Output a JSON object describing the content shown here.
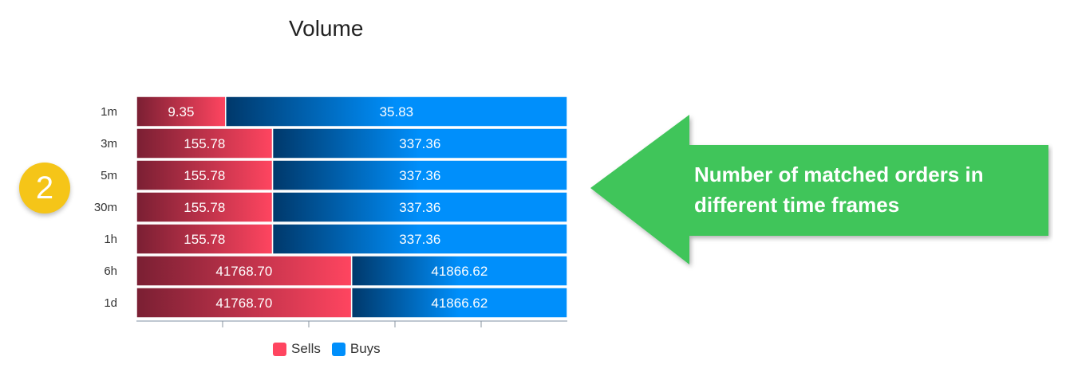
{
  "title": "Volume",
  "badge": "2",
  "callout": {
    "text": "Number of matched orders in different time frames",
    "color": "#3fc55a"
  },
  "legend": [
    {
      "label": "Sells",
      "color": "#ff4560"
    },
    {
      "label": "Buys",
      "color": "#008ffb"
    }
  ],
  "chart_data": {
    "type": "bar",
    "orientation": "horizontal",
    "stacked": "percent",
    "title": "Volume",
    "categories": [
      "1m",
      "3m",
      "5m",
      "30m",
      "1h",
      "6h",
      "1d"
    ],
    "series": [
      {
        "name": "Sells",
        "color": "#ff4560",
        "values": [
          9.35,
          155.78,
          155.78,
          155.78,
          155.78,
          41768.7,
          41768.7
        ],
        "labels": [
          "9.35",
          "155.78",
          "155.78",
          "155.78",
          "155.78",
          "41768.70",
          "41768.70"
        ]
      },
      {
        "name": "Buys",
        "color": "#008ffb",
        "values": [
          35.83,
          337.36,
          337.36,
          337.36,
          337.36,
          41866.62,
          41866.62
        ],
        "labels": [
          "35.83",
          "337.36",
          "337.36",
          "337.36",
          "337.36",
          "41866.62",
          "41866.62"
        ]
      }
    ],
    "legend_position": "bottom",
    "grid": false
  }
}
